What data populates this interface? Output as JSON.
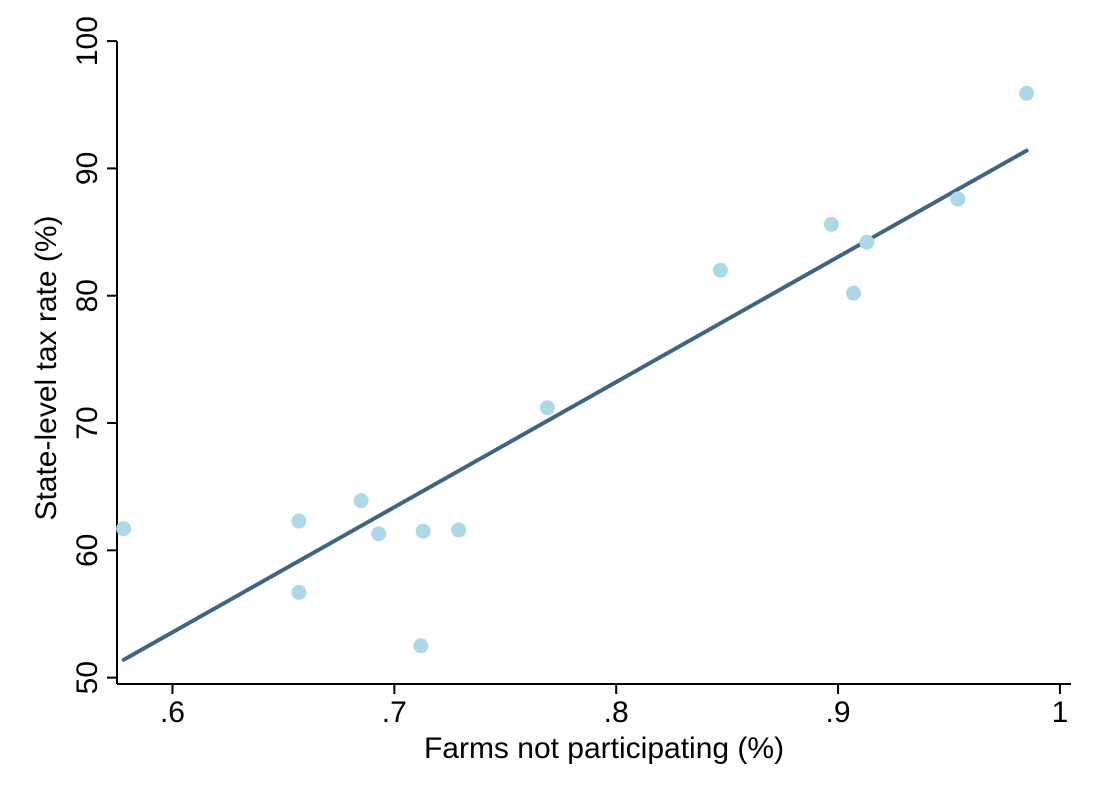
{
  "chart_data": {
    "type": "scatter",
    "title": "",
    "xlabel": "Farms not participating (%)",
    "ylabel": "State-level tax rate (%)",
    "xlim": [
      0.575,
      1.005
    ],
    "ylim": [
      49.5,
      101.5
    ],
    "xticks": [
      0.6,
      0.7,
      0.8,
      0.9,
      1.0
    ],
    "xtick_labels": [
      ".6",
      ".7",
      ".8",
      ".9",
      "1"
    ],
    "yticks": [
      50,
      60,
      70,
      80,
      90,
      100
    ],
    "ytick_labels": [
      "50",
      "60",
      "70",
      "80",
      "90",
      "100"
    ],
    "grid": false,
    "legend": "none",
    "point_color": "#add8e6",
    "line_color": "#3e6680",
    "points": [
      {
        "x": 0.578,
        "y": 61.7
      },
      {
        "x": 0.657,
        "y": 62.3
      },
      {
        "x": 0.657,
        "y": 56.7
      },
      {
        "x": 0.685,
        "y": 63.9
      },
      {
        "x": 0.693,
        "y": 61.3
      },
      {
        "x": 0.712,
        "y": 52.5
      },
      {
        "x": 0.713,
        "y": 61.5
      },
      {
        "x": 0.729,
        "y": 61.6
      },
      {
        "x": 0.769,
        "y": 71.2
      },
      {
        "x": 0.847,
        "y": 82.0
      },
      {
        "x": 0.897,
        "y": 85.6
      },
      {
        "x": 0.907,
        "y": 80.2
      },
      {
        "x": 0.913,
        "y": 84.2
      },
      {
        "x": 0.954,
        "y": 87.6
      },
      {
        "x": 0.985,
        "y": 95.9
      }
    ],
    "fit_line": {
      "x": [
        0.578,
        0.985
      ],
      "y": [
        51.4,
        91.4
      ]
    }
  }
}
